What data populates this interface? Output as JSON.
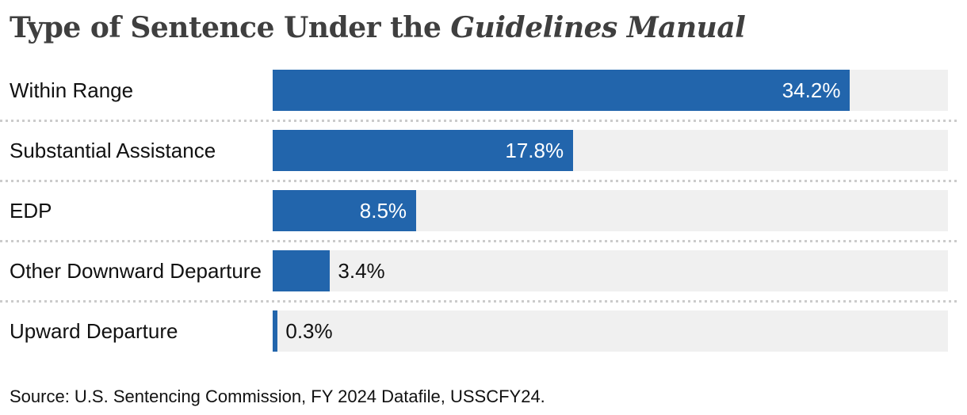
{
  "title": {
    "regular": "Type of Sentence Under the ",
    "italic": "Guidelines Manual"
  },
  "source": "Source: U.S. Sentencing Commission, FY 2024 Datafile, USSCFY24.",
  "colors": {
    "background": "#ffffff",
    "bar": "#2265ac",
    "track": "#f0f0f0",
    "separator": "#cbcbcb",
    "title_text": "#3f3f3f",
    "text": "#111111",
    "value_inside": "#ffffff"
  },
  "chart_data": {
    "type": "bar",
    "orientation": "horizontal",
    "title": "Type of Sentence Under the Guidelines Manual",
    "xlabel": "",
    "ylabel": "",
    "xlim": [
      0,
      40
    ],
    "grid": false,
    "legend": false,
    "categories": [
      "Within Range",
      "Substantial Assistance",
      "EDP",
      "Other Downward Departure",
      "Upward Departure"
    ],
    "values": [
      34.2,
      17.8,
      8.5,
      3.4,
      0.3
    ],
    "rows": [
      {
        "label": "Within Range",
        "value": 34.2,
        "value_label": "34.2%",
        "label_inside": true
      },
      {
        "label": "Substantial Assistance",
        "value": 17.8,
        "value_label": "17.8%",
        "label_inside": true
      },
      {
        "label": "EDP",
        "value": 8.5,
        "value_label": "8.5%",
        "label_inside": true
      },
      {
        "label": "Other Downward Departure",
        "value": 3.4,
        "value_label": "3.4%",
        "label_inside": false
      },
      {
        "label": "Upward Departure",
        "value": 0.3,
        "value_label": "0.3%",
        "label_inside": false
      }
    ]
  }
}
